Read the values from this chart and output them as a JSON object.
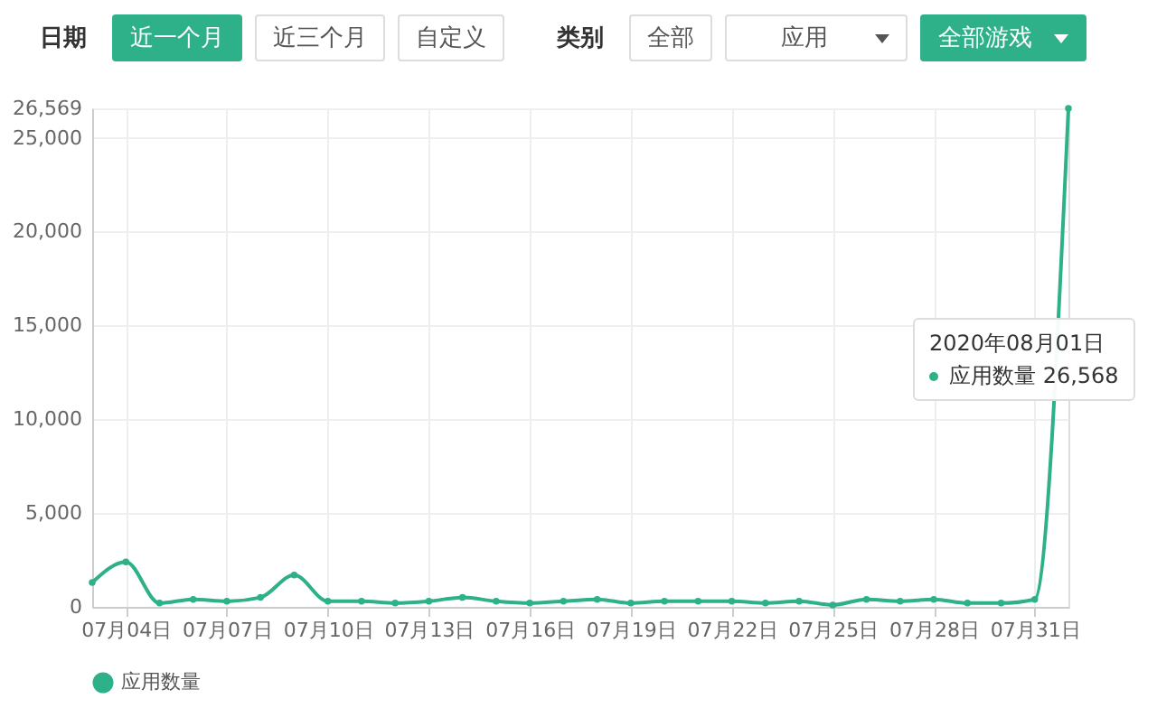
{
  "chart_data": {
    "type": "line",
    "annotations": [
      "日期",
      "近一个月",
      "近三个月",
      "自定义",
      "类别",
      "全部",
      "应用",
      "全部游戏",
      "2020年08月01日",
      "应用数量 26,568"
    ],
    "x": [
      "2020-07-03",
      "2020-07-04",
      "2020-07-05",
      "2020-07-06",
      "2020-07-07",
      "2020-07-08",
      "2020-07-09",
      "2020-07-10",
      "2020-07-11",
      "2020-07-12",
      "2020-07-13",
      "2020-07-14",
      "2020-07-15",
      "2020-07-16",
      "2020-07-17",
      "2020-07-18",
      "2020-07-19",
      "2020-07-20",
      "2020-07-21",
      "2020-07-22",
      "2020-07-23",
      "2020-07-24",
      "2020-07-25",
      "2020-07-26",
      "2020-07-27",
      "2020-07-28",
      "2020-07-29",
      "2020-07-30",
      "2020-07-31",
      "2020-08-01"
    ],
    "series": [
      {
        "name": "应用数量",
        "color": "#2eb088",
        "values": [
          1300,
          2400,
          200,
          400,
          300,
          500,
          1700,
          300,
          300,
          200,
          300,
          500,
          300,
          200,
          300,
          400,
          200,
          300,
          300,
          300,
          200,
          300,
          100,
          400,
          300,
          400,
          200,
          200,
          400,
          26568
        ]
      }
    ],
    "xlim": [
      "2020-07-03",
      "2020-08-01"
    ],
    "xticks": [
      {
        "value": "2020-07-04",
        "label": "07月04日"
      },
      {
        "value": "2020-07-07",
        "label": "07月07日"
      },
      {
        "value": "2020-07-10",
        "label": "07月10日"
      },
      {
        "value": "2020-07-13",
        "label": "07月13日"
      },
      {
        "value": "2020-07-16",
        "label": "07月16日"
      },
      {
        "value": "2020-07-19",
        "label": "07月19日"
      },
      {
        "value": "2020-07-22",
        "label": "07月22日"
      },
      {
        "value": "2020-07-25",
        "label": "07月25日"
      },
      {
        "value": "2020-07-28",
        "label": "07月28日"
      },
      {
        "value": "2020-07-31",
        "label": "07月31日"
      }
    ],
    "ylim": [
      0,
      26569
    ],
    "yticks": [
      0,
      {
        "value": 5000,
        "label": "5,000"
      },
      {
        "value": 10000,
        "label": "10,000"
      },
      {
        "value": 15000,
        "label": "15,000"
      },
      {
        "value": 20000,
        "label": "20,000"
      },
      {
        "value": 25000,
        "label": "25,000"
      },
      {
        "value": 26569,
        "label": "26,569"
      }
    ],
    "grid": true,
    "legend": "bottom",
    "marker": "circle",
    "line_style": "solid"
  }
}
